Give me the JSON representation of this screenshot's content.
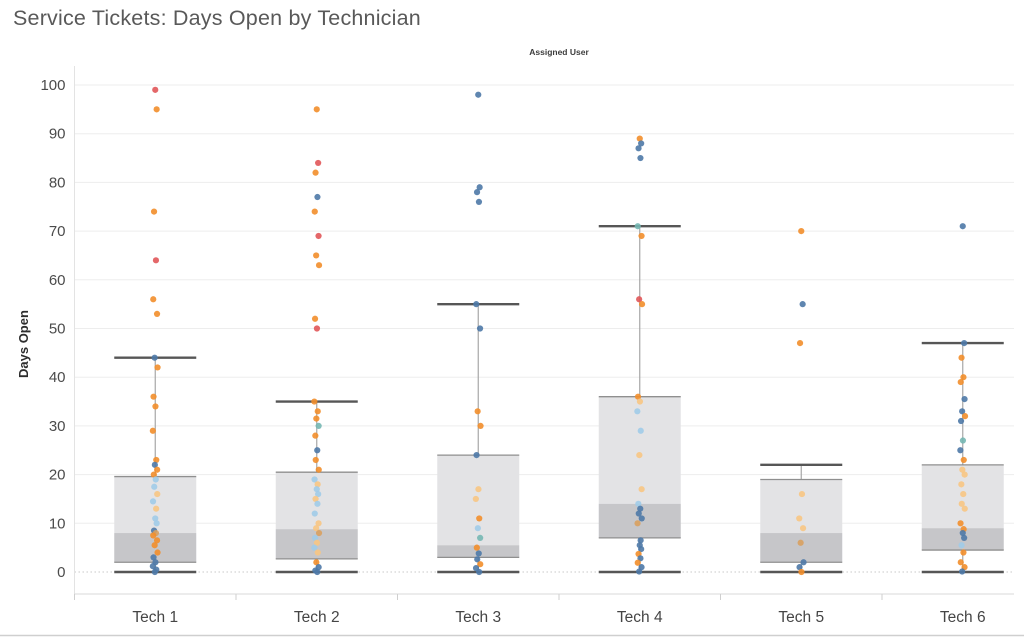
{
  "header": {
    "title": "Service Tickets: Days Open by Technician"
  },
  "pane": {
    "label": "Assigned User"
  },
  "chart_data": {
    "type": "box",
    "title": "Service Tickets: Days Open by Technician",
    "pane_label": "Assigned User",
    "ylabel": "Days Open",
    "xlabel": "",
    "ylim": [
      0,
      100
    ],
    "ytick_step": 10,
    "yticks": [
      0,
      10,
      20,
      30,
      40,
      50,
      60,
      70,
      80,
      90,
      100
    ],
    "grid": "horizontal",
    "legend": "none",
    "categories": [
      "Tech 1",
      "Tech 2",
      "Tech 3",
      "Tech 4",
      "Tech 5",
      "Tech 6"
    ],
    "palette": {
      "b": "#4e79a7",
      "lb": "#a0cbe8",
      "o": "#f28e2b",
      "lo": "#f7c583",
      "tan": "#d8a05f",
      "r": "#e15759",
      "t": "#76b7b2"
    },
    "box_colors": {
      "upper_fill": "#e3e3e5",
      "lower_fill": "#c6c6c9",
      "edge": "#8f8f8f",
      "whisker": "#a6a6a6",
      "cap": "#565656"
    },
    "series": [
      {
        "name": "Tech 1",
        "whisker_low": 0,
        "q1": 2,
        "median": 8,
        "q3": 19.6,
        "whisker_high": 44,
        "points": [
          [
            99,
            "r"
          ],
          [
            95,
            "o"
          ],
          [
            74,
            "o"
          ],
          [
            64,
            "r"
          ],
          [
            56,
            "o"
          ],
          [
            53,
            "o"
          ],
          [
            44,
            "b"
          ],
          [
            42,
            "o"
          ],
          [
            36,
            "o"
          ],
          [
            34,
            "o"
          ],
          [
            29,
            "o"
          ],
          [
            23,
            "o"
          ],
          [
            22,
            "b"
          ],
          [
            21,
            "o"
          ],
          [
            20,
            "o"
          ],
          [
            19,
            "lb"
          ],
          [
            17.5,
            "lb"
          ],
          [
            16,
            "lo"
          ],
          [
            14.5,
            "lb"
          ],
          [
            13,
            "lo"
          ],
          [
            11,
            "lb"
          ],
          [
            10,
            "lb"
          ],
          [
            8.5,
            "b"
          ],
          [
            8,
            "tan"
          ],
          [
            7.5,
            "o"
          ],
          [
            6.5,
            "o"
          ],
          [
            5.5,
            "o"
          ],
          [
            4,
            "o"
          ],
          [
            3,
            "b"
          ],
          [
            2,
            "b"
          ],
          [
            1.2,
            "b"
          ],
          [
            0.5,
            "b"
          ],
          [
            0,
            "b"
          ]
        ]
      },
      {
        "name": "Tech 2",
        "whisker_low": 0,
        "q1": 2.7,
        "median": 8.8,
        "q3": 20.5,
        "whisker_high": 35,
        "points": [
          [
            95,
            "o"
          ],
          [
            84,
            "r"
          ],
          [
            82,
            "o"
          ],
          [
            77,
            "b"
          ],
          [
            74,
            "o"
          ],
          [
            69,
            "r"
          ],
          [
            65,
            "o"
          ],
          [
            63,
            "o"
          ],
          [
            52,
            "o"
          ],
          [
            50,
            "r"
          ],
          [
            35,
            "o"
          ],
          [
            33,
            "o"
          ],
          [
            31.5,
            "o"
          ],
          [
            30,
            "t"
          ],
          [
            28,
            "o"
          ],
          [
            25,
            "b"
          ],
          [
            23,
            "o"
          ],
          [
            21,
            "o"
          ],
          [
            19,
            "lb"
          ],
          [
            18,
            "lo"
          ],
          [
            17,
            "lb"
          ],
          [
            16,
            "lb"
          ],
          [
            15,
            "lo"
          ],
          [
            14,
            "lb"
          ],
          [
            12,
            "lb"
          ],
          [
            10,
            "lo"
          ],
          [
            9,
            "lo"
          ],
          [
            8,
            "tan"
          ],
          [
            7,
            "lb"
          ],
          [
            6,
            "lo"
          ],
          [
            5,
            "lb"
          ],
          [
            4,
            "lo"
          ],
          [
            2,
            "o"
          ],
          [
            1,
            "b"
          ],
          [
            0.3,
            "b"
          ],
          [
            0,
            "b"
          ]
        ]
      },
      {
        "name": "Tech 3",
        "whisker_low": 0,
        "q1": 3,
        "median": 5.5,
        "q3": 24,
        "whisker_high": 55,
        "points": [
          [
            98,
            "b"
          ],
          [
            79,
            "b"
          ],
          [
            78,
            "b"
          ],
          [
            76,
            "b"
          ],
          [
            55,
            "b"
          ],
          [
            50,
            "b"
          ],
          [
            33,
            "o"
          ],
          [
            30,
            "o"
          ],
          [
            24,
            "b"
          ],
          [
            17,
            "lo"
          ],
          [
            15,
            "lo"
          ],
          [
            11,
            "o"
          ],
          [
            9,
            "lb"
          ],
          [
            7,
            "t"
          ],
          [
            5,
            "o"
          ],
          [
            3.8,
            "b"
          ],
          [
            2.6,
            "b"
          ],
          [
            1.6,
            "o"
          ],
          [
            0.8,
            "b"
          ],
          [
            0,
            "b"
          ]
        ]
      },
      {
        "name": "Tech 4",
        "whisker_low": 0,
        "q1": 7,
        "median": 14,
        "q3": 36,
        "whisker_high": 71,
        "points": [
          [
            89,
            "o"
          ],
          [
            88,
            "b"
          ],
          [
            87,
            "b"
          ],
          [
            85,
            "b"
          ],
          [
            71,
            "t"
          ],
          [
            69,
            "o"
          ],
          [
            56,
            "r"
          ],
          [
            55,
            "o"
          ],
          [
            36,
            "o"
          ],
          [
            35,
            "lo"
          ],
          [
            33,
            "lb"
          ],
          [
            29,
            "lb"
          ],
          [
            24,
            "lo"
          ],
          [
            17,
            "lo"
          ],
          [
            14,
            "lb"
          ],
          [
            13,
            "b"
          ],
          [
            12,
            "b"
          ],
          [
            11,
            "b"
          ],
          [
            10,
            "tan"
          ],
          [
            6.5,
            "b"
          ],
          [
            5.5,
            "b"
          ],
          [
            4.7,
            "b"
          ],
          [
            3.7,
            "o"
          ],
          [
            2.8,
            "b"
          ],
          [
            1.9,
            "o"
          ],
          [
            1,
            "b"
          ],
          [
            0.1,
            "b"
          ]
        ]
      },
      {
        "name": "Tech 5",
        "whisker_low": 0,
        "q1": 2,
        "median": 8,
        "q3": 19,
        "whisker_high": 22,
        "points": [
          [
            70,
            "o"
          ],
          [
            55,
            "b"
          ],
          [
            47,
            "o"
          ],
          [
            16,
            "lo"
          ],
          [
            11,
            "lo"
          ],
          [
            9,
            "lo"
          ],
          [
            6,
            "tan"
          ],
          [
            2,
            "b"
          ],
          [
            1,
            "b"
          ],
          [
            0,
            "o"
          ]
        ]
      },
      {
        "name": "Tech 6",
        "whisker_low": 0,
        "q1": 4.5,
        "median": 9,
        "q3": 22,
        "whisker_high": 47,
        "points": [
          [
            71,
            "b"
          ],
          [
            47,
            "b"
          ],
          [
            44,
            "o"
          ],
          [
            40,
            "o"
          ],
          [
            39,
            "o"
          ],
          [
            35.5,
            "b"
          ],
          [
            33,
            "b"
          ],
          [
            32,
            "o"
          ],
          [
            31,
            "b"
          ],
          [
            27,
            "t"
          ],
          [
            25,
            "b"
          ],
          [
            23,
            "o"
          ],
          [
            21,
            "lo"
          ],
          [
            20,
            "lo"
          ],
          [
            18,
            "lo"
          ],
          [
            16,
            "lo"
          ],
          [
            14,
            "lo"
          ],
          [
            13,
            "lo"
          ],
          [
            10,
            "o"
          ],
          [
            8.8,
            "o"
          ],
          [
            8,
            "b"
          ],
          [
            7,
            "b"
          ],
          [
            5.5,
            "lb"
          ],
          [
            4,
            "o"
          ],
          [
            2,
            "o"
          ],
          [
            1,
            "o"
          ],
          [
            0.1,
            "b"
          ]
        ]
      }
    ]
  }
}
